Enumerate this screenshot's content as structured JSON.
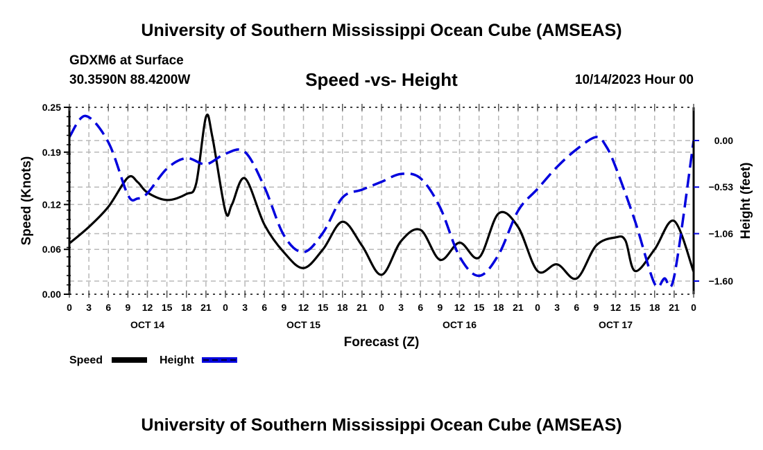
{
  "header": {
    "main_title": "University of Southern Mississippi Ocean Cube (AMSEAS)",
    "station": "GDXM6 at Surface",
    "coords": "30.3590N  88.4200W",
    "subtitle": "Speed -vs- Height",
    "date": "10/14/2023 Hour 00"
  },
  "footer": {
    "bottom_title": "University of Southern Mississippi Ocean Cube (AMSEAS)"
  },
  "colors": {
    "speed": "#000000",
    "height": "#0000dd",
    "grid": "#b8b8b8"
  },
  "chart_data": {
    "type": "line",
    "title": "Speed -vs- Height",
    "xlabel": "Forecast (Z)",
    "ylabel": "Speed (Knots)",
    "y2label": "Height (feet)",
    "xlim": [
      0,
      96
    ],
    "ylim": [
      0.0,
      0.25
    ],
    "y2lim": [
      -1.6,
      0.0
    ],
    "x_tick_hours": [
      0,
      3,
      6,
      9,
      12,
      15,
      18,
      21,
      24,
      27,
      30,
      33,
      36,
      39,
      42,
      45,
      48,
      51,
      54,
      57,
      60,
      63,
      66,
      69,
      72,
      75,
      78,
      81,
      84,
      87,
      90,
      93,
      96
    ],
    "x_tick_labels": [
      "0",
      "3",
      "6",
      "9",
      "12",
      "15",
      "18",
      "21",
      "0",
      "3",
      "6",
      "9",
      "12",
      "15",
      "18",
      "21",
      "0",
      "3",
      "6",
      "9",
      "12",
      "15",
      "18",
      "21",
      "0",
      "3",
      "6",
      "9",
      "12",
      "15",
      "18",
      "21",
      "0"
    ],
    "day_labels": [
      {
        "label": "OCT 14",
        "hour": 12
      },
      {
        "label": "OCT 15",
        "hour": 36
      },
      {
        "label": "OCT 16",
        "hour": 60
      },
      {
        "label": "OCT 17",
        "hour": 84
      }
    ],
    "y_ticks": [
      0.0,
      0.06,
      0.12,
      0.19,
      0.25
    ],
    "y_tick_labels": [
      "0.00",
      "0.06",
      "0.12",
      "0.19",
      "0.25"
    ],
    "y2_ticks": [
      0.0,
      -0.53,
      -1.06,
      -1.6
    ],
    "y2_tick_labels": [
      "0.00",
      "−0.53",
      "−1.06",
      "−1.60"
    ],
    "grid": true,
    "legend": {
      "placement": "bottom-left",
      "entries": [
        {
          "name": "Speed",
          "style": "solid"
        },
        {
          "name": "Height",
          "style": "dashed"
        }
      ]
    },
    "series": [
      {
        "name": "Speed",
        "axis": "left",
        "style": "solid",
        "x": [
          0,
          3,
          6,
          9,
          10.5,
          12,
          15,
          18,
          19.5,
          21,
          22,
          24,
          25,
          27,
          30,
          33,
          36,
          39,
          42,
          45,
          48,
          51,
          54,
          57,
          60,
          63,
          66,
          69,
          72,
          75,
          78,
          81,
          84,
          85.5,
          87,
          90,
          93,
          96
        ],
        "y": [
          0.068,
          0.09,
          0.117,
          0.156,
          0.15,
          0.136,
          0.126,
          0.134,
          0.148,
          0.237,
          0.21,
          0.111,
          0.12,
          0.155,
          0.093,
          0.056,
          0.035,
          0.06,
          0.097,
          0.065,
          0.026,
          0.071,
          0.086,
          0.046,
          0.069,
          0.049,
          0.108,
          0.09,
          0.031,
          0.04,
          0.021,
          0.065,
          0.076,
          0.072,
          0.031,
          0.06,
          0.098,
          0.03
        ]
      },
      {
        "name": "Height",
        "axis": "right",
        "style": "dashed",
        "x": [
          0,
          2.5,
          6,
          9,
          10.5,
          12,
          15,
          18,
          21,
          24,
          27,
          30,
          33,
          36,
          39,
          42,
          45,
          48,
          51,
          54,
          57,
          60,
          63,
          66,
          69,
          72,
          75,
          78,
          81,
          82.5,
          84,
          87,
          90,
          91.5,
          93,
          96
        ],
        "y": [
          0.04,
          0.28,
          -0.02,
          -0.62,
          -0.66,
          -0.6,
          -0.32,
          -0.2,
          -0.27,
          -0.15,
          -0.13,
          -0.53,
          -1.08,
          -1.27,
          -1.05,
          -0.65,
          -0.56,
          -0.47,
          -0.38,
          -0.43,
          -0.76,
          -1.32,
          -1.54,
          -1.3,
          -0.8,
          -0.55,
          -0.3,
          -0.1,
          0.04,
          -0.06,
          -0.3,
          -0.92,
          -1.63,
          -1.57,
          -1.55,
          0.0
        ]
      }
    ]
  }
}
